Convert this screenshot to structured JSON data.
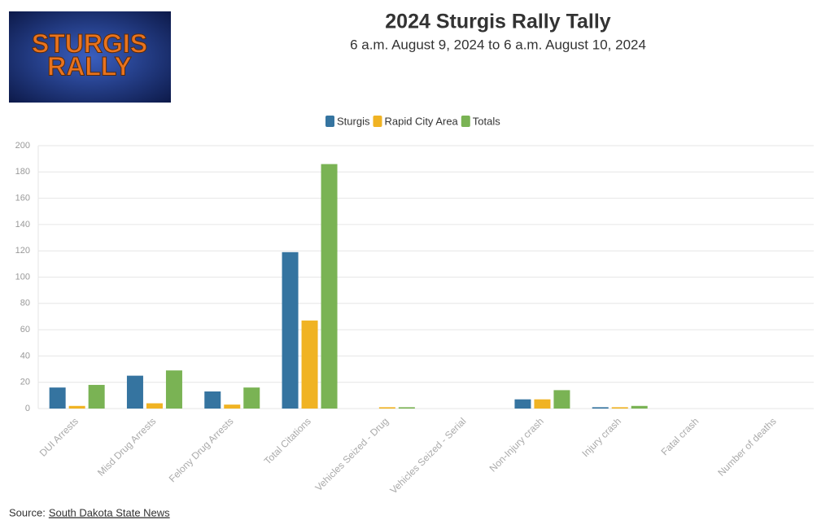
{
  "logo": {
    "lines": [
      "STURGIS",
      "RALLY"
    ]
  },
  "chart_data": {
    "type": "bar",
    "title": "2024 Sturgis Rally Tally",
    "subtitle": "6 a.m. August 9, 2024 to 6 a.m. August 10, 2024",
    "categories": [
      "DUI Arrests",
      "Misd Drug Arrests",
      "Felony Drug Arrests",
      "Total Citations",
      "Vehicles Seized - Drug",
      "Vehicles Seized - Serial",
      "Non-Injury crash",
      "Injury crash",
      "Fatal crash",
      "Number of deaths"
    ],
    "series": [
      {
        "name": "Sturgis",
        "color": "#3574a0",
        "values": [
          16,
          25,
          13,
          119,
          0,
          0,
          7,
          1,
          0,
          0
        ]
      },
      {
        "name": "Rapid City Area",
        "color": "#f0b323",
        "values": [
          2,
          4,
          3,
          67,
          1,
          0,
          7,
          1,
          0,
          0
        ]
      },
      {
        "name": "Totals",
        "color": "#7ab354",
        "values": [
          18,
          29,
          16,
          186,
          1,
          0,
          14,
          2,
          0,
          0
        ]
      }
    ],
    "ylim": [
      0,
      200
    ],
    "yticks": [
      0,
      20,
      40,
      60,
      80,
      100,
      120,
      140,
      160,
      180,
      200
    ],
    "grid": true,
    "legend": "top"
  },
  "source": {
    "label": "Source:",
    "link": "South Dakota State News"
  }
}
